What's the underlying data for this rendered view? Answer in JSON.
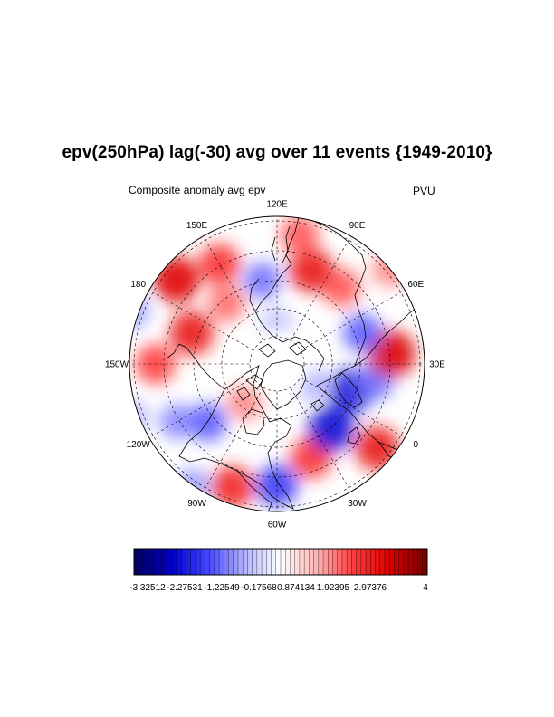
{
  "header": {
    "title": "epv(250hPa) lag(-30) avg over 11 events {1949-2010}",
    "left_subtitle": "Composite anomaly avg epv",
    "right_subtitle": "PVU"
  },
  "map": {
    "projection": "polar-stereographic-north",
    "field": "epv anomaly at 250hPa",
    "longitude_labels": [
      {
        "lon": 0,
        "text": "0"
      },
      {
        "lon": 30,
        "text": "30E"
      },
      {
        "lon": 60,
        "text": "60E"
      },
      {
        "lon": 90,
        "text": "90E"
      },
      {
        "lon": 120,
        "text": "120E"
      },
      {
        "lon": 150,
        "text": "150E"
      },
      {
        "lon": 180,
        "text": "180"
      },
      {
        "lon": -150,
        "text": "150W"
      },
      {
        "lon": -120,
        "text": "120W"
      },
      {
        "lon": -90,
        "text": "90W"
      },
      {
        "lon": -60,
        "text": "60W"
      },
      {
        "lon": -30,
        "text": "30W"
      }
    ],
    "anomaly_blobs": [
      {
        "lon": -170,
        "lat": 58,
        "value": 2.6
      },
      {
        "lon": 170,
        "lat": 45,
        "value": 2.9
      },
      {
        "lon": 150,
        "lat": 50,
        "value": 2.2
      },
      {
        "lon": -150,
        "lat": 48,
        "value": 2.0
      },
      {
        "lon": -120,
        "lat": 50,
        "value": -1.4
      },
      {
        "lon": -110,
        "lat": 58,
        "value": -1.8
      },
      {
        "lon": -95,
        "lat": 40,
        "value": -1.2
      },
      {
        "lon": -80,
        "lat": 45,
        "value": 2.4
      },
      {
        "lon": -60,
        "lat": 48,
        "value": -2.2
      },
      {
        "lon": -40,
        "lat": 55,
        "value": 2.2
      },
      {
        "lon": -20,
        "lat": 60,
        "value": -2.8
      },
      {
        "lon": -10,
        "lat": 45,
        "value": 2.6
      },
      {
        "lon": 10,
        "lat": 62,
        "value": -2.6
      },
      {
        "lon": 20,
        "lat": 55,
        "value": -1.6
      },
      {
        "lon": 35,
        "lat": 50,
        "value": 3.0
      },
      {
        "lon": 50,
        "lat": 58,
        "value": -1.8
      },
      {
        "lon": 80,
        "lat": 55,
        "value": 1.8
      },
      {
        "lon": 100,
        "lat": 55,
        "value": 2.6
      },
      {
        "lon": 110,
        "lat": 45,
        "value": 1.8
      },
      {
        "lon": 130,
        "lat": 60,
        "value": -1.6
      },
      {
        "lon": 160,
        "lat": 62,
        "value": 1.6
      },
      {
        "lon": -130,
        "lat": 38,
        "value": -1.0
      },
      {
        "lon": 70,
        "lat": 40,
        "value": 1.4
      },
      {
        "lon": -170,
        "lat": 38,
        "value": -1.2
      },
      {
        "lon": 0,
        "lat": 75,
        "value": -1.0
      },
      {
        "lon": 120,
        "lat": 75,
        "value": -0.8
      },
      {
        "lon": -100,
        "lat": 72,
        "value": 1.4
      }
    ]
  },
  "colorbar": {
    "tick_labels": [
      "-3.32512",
      "-2.27531",
      "-1.22549",
      "-0.17568",
      "0.874134",
      "1.92395",
      "2.97376",
      "4"
    ],
    "color_stops": [
      "#00005e",
      "#0000c8",
      "#4646ff",
      "#b4b4ff",
      "#ffffff",
      "#ffb4b4",
      "#ff3c3c",
      "#dc0000",
      "#7a0000"
    ],
    "segments": 62,
    "range": [
      -4.0,
      4.0
    ]
  }
}
